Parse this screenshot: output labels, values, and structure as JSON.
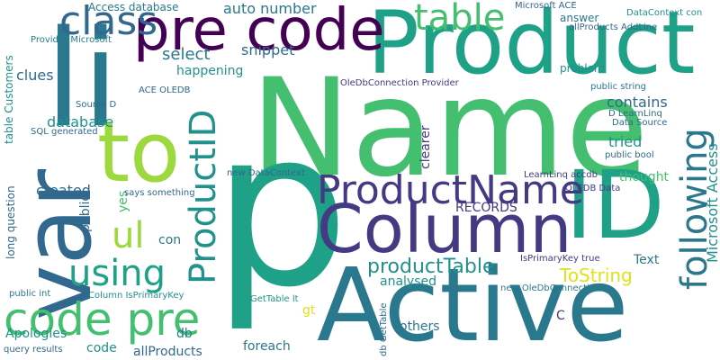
{
  "colors": {
    "green": "#44bf70",
    "lime": "#9bd93c",
    "teal": "#21918c",
    "blue": "#31688e",
    "indigo": "#443983",
    "violet": "#440154",
    "aqua": "#1fa187",
    "yellow": "#dde318"
  },
  "words": [
    "Name",
    "p",
    "Product",
    "Active",
    "Column",
    "ID",
    "li",
    "var",
    "to",
    "pre code",
    "ProductName",
    "code pre",
    "ProductID",
    "using",
    "following",
    "class",
    "table",
    "ul",
    "productTable",
    "Microsoft Access",
    "ToString",
    "select",
    "auto number",
    "snippet",
    "happening",
    "database",
    "clues",
    "contains",
    "tried",
    "thought",
    "created",
    "public",
    "yes",
    "con",
    "RECORDS",
    "Text",
    "analysed",
    "gt",
    "foreach",
    "others",
    "db",
    "C",
    "Apologies",
    "allProducts",
    "Access database",
    "long question",
    "table Customers",
    "problem",
    "answer",
    "public string",
    "public bool",
    "ACE OLEDB",
    "Source D",
    "OleDbConnection Provider",
    "new DataContext",
    "LearnLinq accdb",
    "D LearnLinq",
    "Data Source",
    "OLEDB Data",
    "IsPrimaryKey true",
    "new OleDbConnection",
    "GetTable lt",
    "Column IsPrimaryKey",
    "public int",
    "query results",
    "db GetTable",
    "says something",
    "SQL generated",
    "Provider Microsoft",
    "Microsoft ACE",
    "DataContext con",
    "allProducts AddLine",
    "clearer",
    "code"
  ]
}
